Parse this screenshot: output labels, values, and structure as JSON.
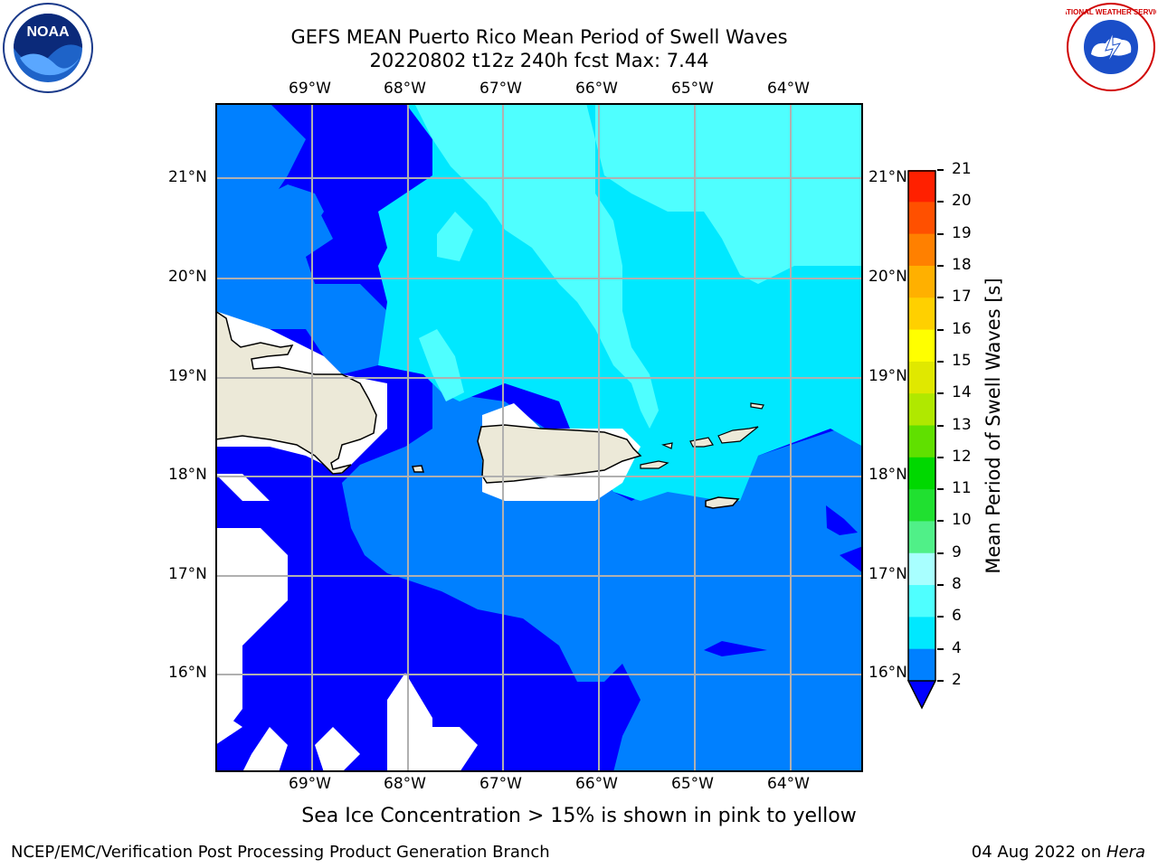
{
  "header": {
    "title_line1": "GEFS MEAN Puerto Rico Mean Period of Swell Waves",
    "title_line2": "20220802 t12z 240h fcst   Max: 7.44"
  },
  "map": {
    "lon_labels": [
      "69°W",
      "68°W",
      "67°W",
      "66°W",
      "65°W",
      "64°W"
    ],
    "lat_labels": [
      "21°N",
      "20°N",
      "19°N",
      "18°N",
      "17°N",
      "16°N"
    ],
    "lon_range": [
      -70.0,
      -63.3
    ],
    "lat_range": [
      15.0,
      21.75
    ]
  },
  "colorbar": {
    "label": "Mean Period of Swell Waves [s]",
    "ticks": [
      "2",
      "4",
      "6",
      "8",
      "9",
      "10",
      "11",
      "12",
      "13",
      "14",
      "15",
      "16",
      "17",
      "18",
      "19",
      "20",
      "21"
    ],
    "colors": [
      "#0000ff",
      "#0080ff",
      "#00e8ff",
      "#4fffff",
      "#a8ffff",
      "#50f088",
      "#20e030",
      "#00d800",
      "#60e000",
      "#b0e800",
      "#e0e800",
      "#ffff00",
      "#ffd000",
      "#ffb000",
      "#ff8000",
      "#ff5000",
      "#ff2000",
      "#ff0000"
    ]
  },
  "caption": "Sea Ice Concentration > 15% is shown in pink to yellow",
  "footer": {
    "left": "NCEP/EMC/Verification Post Processing Product Generation Branch",
    "right_date": "04 Aug 2022 on ",
    "right_machine": "Hera"
  },
  "logos": {
    "left": "NOAA",
    "right": "NATIONAL WEATHER SERVICE"
  }
}
